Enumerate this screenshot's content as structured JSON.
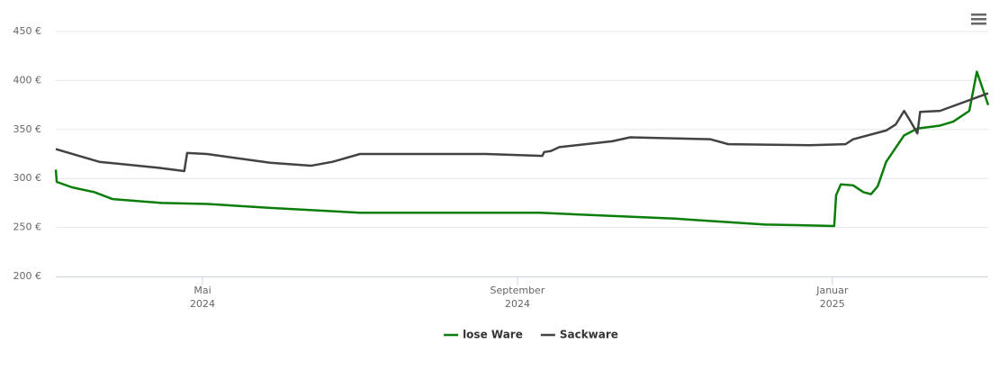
{
  "chart_data": {
    "type": "line",
    "series": [
      {
        "name": "lose Ware",
        "color": "#0a7d0a",
        "x": [
          2024.178,
          2024.179,
          2024.195,
          2024.219,
          2024.238,
          2024.29,
          2024.338,
          2024.405,
          2024.5,
          2024.69,
          2024.833,
          2024.929,
          2025.002,
          2025.004,
          2025.009,
          2025.022,
          2025.033,
          2025.041,
          2025.048,
          2025.057,
          2025.076,
          2025.09,
          2025.114,
          2025.128,
          2025.145,
          2025.153,
          2025.165
        ],
        "values": [
          309,
          296.5,
          291,
          286,
          279,
          275,
          274,
          270,
          265,
          265,
          259,
          253,
          251.5,
          283,
          294,
          293,
          286,
          284,
          292,
          317,
          344,
          351,
          354,
          358,
          369,
          409,
          375
        ]
      },
      {
        "name": "Sackware",
        "color": "#434343",
        "x": [
          2024.178,
          2024.224,
          2024.286,
          2024.314,
          2024.317,
          2024.338,
          2024.405,
          2024.448,
          2024.471,
          2024.5,
          2024.633,
          2024.693,
          2024.695,
          2024.702,
          2024.711,
          2024.767,
          2024.786,
          2024.871,
          2024.89,
          2024.976,
          2025.014,
          2025.022,
          2025.057,
          2025.067,
          2025.076,
          2025.083,
          2025.09,
          2025.093,
          2025.114,
          2025.165
        ],
        "values": [
          330,
          317,
          311,
          307.5,
          326,
          325,
          316,
          313,
          317,
          325,
          325,
          323,
          327,
          328,
          332,
          338,
          342,
          340,
          335,
          334,
          335,
          340,
          349,
          355,
          369,
          358,
          346,
          368,
          369,
          387
        ]
      }
    ],
    "xlim": [
      2024.178,
      2025.165
    ],
    "xticks": [
      {
        "value": 2024.3333,
        "label": "Mai 2024"
      },
      {
        "value": 2024.6667,
        "label": "September 2024"
      },
      {
        "value": 2025.0,
        "label": "Januar 2025"
      }
    ],
    "ylim": [
      200,
      450
    ],
    "yticks": [
      {
        "value": 200,
        "label": "200 €"
      },
      {
        "value": 250,
        "label": "250 €"
      },
      {
        "value": 300,
        "label": "300 €"
      },
      {
        "value": 350,
        "label": "350 €"
      },
      {
        "value": 400,
        "label": "400 €"
      },
      {
        "value": 450,
        "label": "450 €"
      }
    ],
    "grid": true,
    "legend": "bottom"
  }
}
